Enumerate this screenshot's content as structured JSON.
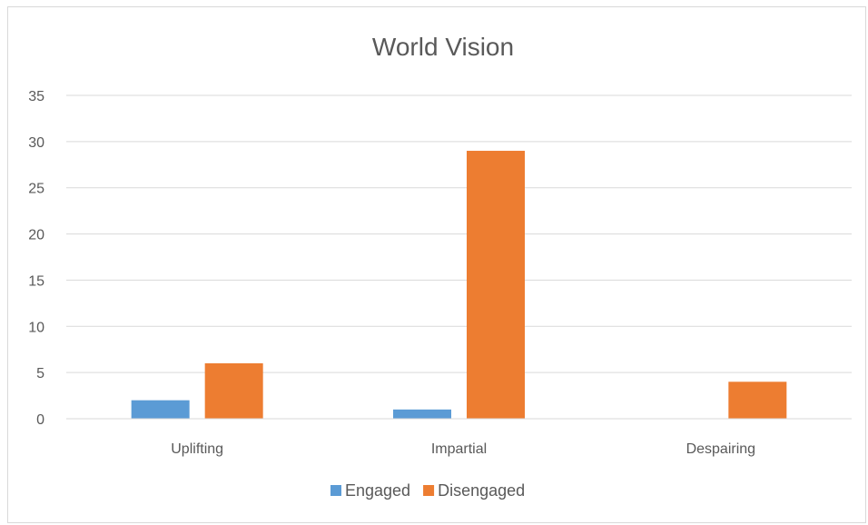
{
  "chart_data": {
    "type": "bar",
    "title": "World Vision",
    "xlabel": "",
    "ylabel": "",
    "categories": [
      "Uplifting",
      "Impartial",
      "Despairing"
    ],
    "series": [
      {
        "name": "Engaged",
        "values": [
          2,
          1,
          0
        ],
        "color": "#5b9bd5"
      },
      {
        "name": "Disengaged",
        "values": [
          6,
          29,
          4
        ],
        "color": "#ed7d31"
      }
    ],
    "ylim": [
      0,
      35
    ],
    "yticks": [
      "0",
      "5",
      "10",
      "15",
      "20",
      "25",
      "30",
      "35"
    ],
    "grid": true,
    "legend_position": "bottom"
  }
}
